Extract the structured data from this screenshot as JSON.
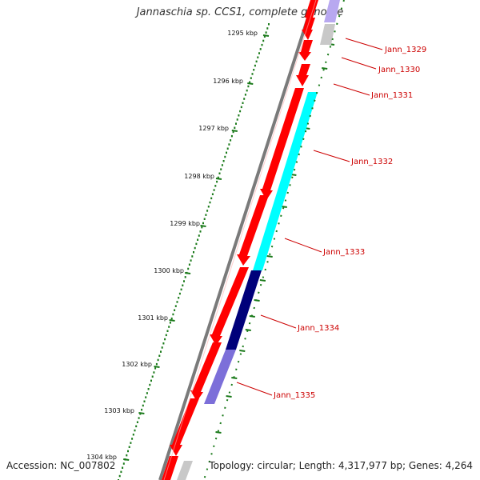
{
  "title": "Jannaschia sp. CCS1, complete genome",
  "footer": {
    "accession": "Accession: NC_007802",
    "info": "Topology: circular; Length: 4,317,977 bp; Genes: 4,264"
  },
  "colors": {
    "backbone": "#7a7a7a",
    "forward_cds": "#ff0000",
    "gray_feature": "#c8c8c8",
    "cyan_gene": "#00ffff",
    "navy_gene": "#00007a",
    "lavender_gene": "#7c6fd9",
    "tick_green": "#1a7a1a",
    "gene_label": "#cc0000"
  },
  "scale_labels": [
    "1295 kbp",
    "1296 kbp",
    "1297 kbp",
    "1298 kbp",
    "1299 kbp",
    "1300 kbp",
    "1301 kbp",
    "1302 kbp",
    "1303 kbp",
    "1304 kbp"
  ],
  "gene_labels": [
    "Jann_1329",
    "Jann_1330",
    "Jann_1331",
    "Jann_1332",
    "Jann_1333",
    "Jann_1334",
    "Jann_1335"
  ]
}
